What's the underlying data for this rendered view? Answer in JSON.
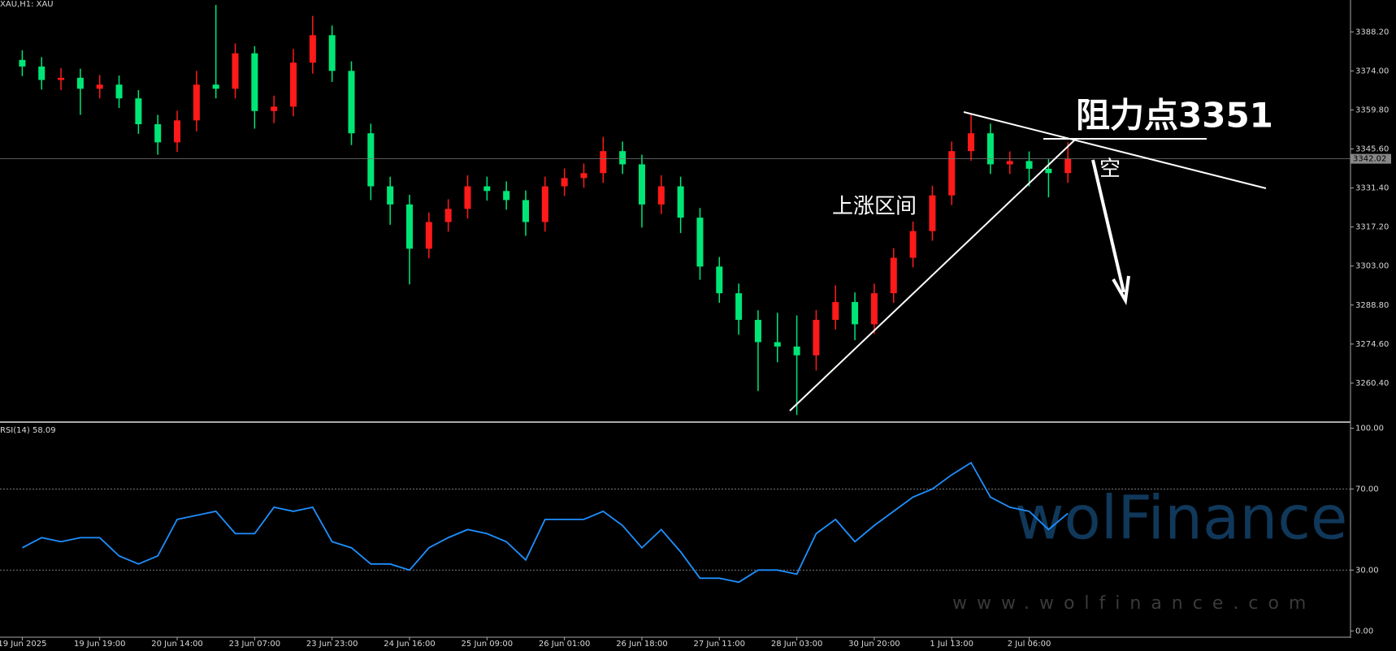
{
  "chart_data": [
    {
      "type": "candlestick",
      "title": "XAU,H1: XAU",
      "up_color": "#ff1a1a",
      "down_color": "#00e676",
      "open": [
        3378.0,
        3375.6,
        3370.7,
        3371.5,
        3367.5,
        3369.0,
        3364.0,
        3354.6,
        3348.0,
        3356.0,
        3369.0,
        3367.5,
        3380.4,
        3359.4,
        3361.0,
        3377.0,
        3387.0,
        3374.0,
        3351.3,
        3332.0,
        3325.4,
        3309.3,
        3319.0,
        3323.8,
        3332.0,
        3330.3,
        3327.0,
        3319.0,
        3332.0,
        3335.0,
        3336.8,
        3344.8,
        3340.0,
        3325.4,
        3332.0,
        3320.6,
        3302.8,
        3293.1,
        3283.4,
        3275.3,
        3273.7,
        3270.5,
        3283.4,
        3289.9,
        3281.8,
        3293.1,
        3306.0,
        3315.7,
        3328.7,
        3344.8,
        3351.3,
        3340.0,
        3341.2,
        3338.4,
        3336.8
      ],
      "high": [
        3381.5,
        3379.0,
        3375.0,
        3374.8,
        3372.5,
        3372.3,
        3367.0,
        3358.0,
        3359.5,
        3374.0,
        3398.0,
        3384.0,
        3383.0,
        3365.0,
        3382.0,
        3394.0,
        3390.5,
        3377.5,
        3354.8,
        3335.5,
        3328.9,
        3322.5,
        3327.3,
        3336.0,
        3335.5,
        3333.8,
        3330.5,
        3335.5,
        3338.5,
        3340.3,
        3350.0,
        3348.3,
        3343.5,
        3336.0,
        3335.5,
        3324.1,
        3306.3,
        3296.6,
        3286.9,
        3286.0,
        3285.0,
        3287.0,
        3296.0,
        3293.4,
        3296.6,
        3309.5,
        3319.2,
        3332.2,
        3348.3,
        3358.4,
        3354.8,
        3344.7,
        3344.7,
        3341.9,
        3348.0
      ],
      "low": [
        3372.1,
        3367.2,
        3367.0,
        3358.0,
        3364.0,
        3360.5,
        3351.1,
        3343.5,
        3344.5,
        3352.0,
        3364.0,
        3364.0,
        3353.0,
        3355.0,
        3357.5,
        3373.0,
        3370.0,
        3347.0,
        3327.0,
        3318.0,
        3296.3,
        3305.8,
        3315.5,
        3320.3,
        3326.8,
        3323.5,
        3314.0,
        3315.5,
        3328.5,
        3331.5,
        3333.3,
        3336.5,
        3317.0,
        3321.9,
        3315.0,
        3298.0,
        3289.6,
        3278.0,
        3257.5,
        3268.0,
        3248.8,
        3265.0,
        3279.9,
        3276.0,
        3278.3,
        3289.6,
        3302.5,
        3312.2,
        3325.2,
        3341.3,
        3336.5,
        3336.5,
        3332.0,
        3328.0,
        3333.3
      ],
      "close": [
        3375.6,
        3370.7,
        3371.5,
        3367.5,
        3369.0,
        3364.0,
        3354.6,
        3348.0,
        3356.0,
        3369.0,
        3367.5,
        3380.4,
        3359.4,
        3361.0,
        3377.0,
        3387.0,
        3374.0,
        3351.3,
        3332.0,
        3325.4,
        3309.3,
        3319.0,
        3323.8,
        3332.0,
        3330.3,
        3327.0,
        3319.0,
        3332.0,
        3335.0,
        3336.8,
        3344.8,
        3340.0,
        3325.4,
        3332.0,
        3320.6,
        3302.8,
        3293.1,
        3283.4,
        3275.3,
        3273.7,
        3270.5,
        3283.4,
        3289.9,
        3281.8,
        3293.1,
        3306.0,
        3315.7,
        3328.7,
        3344.8,
        3351.3,
        3340.0,
        3341.2,
        3338.4,
        3336.8,
        3342.0
      ],
      "ylim": [
        3246.5,
        3399.8
      ],
      "yticks": [
        {
          "value": 3388.2,
          "label": "3388.20"
        },
        {
          "value": 3374.0,
          "label": "3374.00"
        },
        {
          "value": 3359.8,
          "label": "3359.80"
        },
        {
          "value": 3345.6,
          "label": "3345.60"
        },
        {
          "value": 3331.4,
          "label": "3331.40"
        },
        {
          "value": 3317.2,
          "label": "3317.20"
        },
        {
          "value": 3303.0,
          "label": "3303.00"
        },
        {
          "value": 3288.8,
          "label": "3288.80"
        },
        {
          "value": 3274.6,
          "label": "3274.60"
        },
        {
          "value": 3260.4,
          "label": "3260.40"
        }
      ],
      "last_price": {
        "value": 3342.02,
        "label": "3342.02"
      }
    },
    {
      "type": "line",
      "title": "RSI(14) 58.09",
      "color": "#1e90ff",
      "categories": [
        "19 Jun 2025",
        null,
        null,
        null,
        "19 Jun 19:00",
        null,
        null,
        null,
        "20 Jun 14:00",
        null,
        null,
        null,
        "23 Jun 07:00",
        null,
        null,
        null,
        "23 Jun 23:00",
        null,
        null,
        null,
        "24 Jun 16:00",
        null,
        null,
        null,
        "25 Jun 09:00",
        null,
        null,
        null,
        "26 Jun 01:00",
        null,
        null,
        null,
        "26 Jun 18:00",
        null,
        null,
        null,
        "27 Jun 11:00",
        null,
        null,
        null,
        "28 Jun 03:00",
        null,
        null,
        null,
        "30 Jun 20:00",
        null,
        null,
        null,
        "1 Jul 13:00",
        null,
        null,
        null,
        "2 Jul 06:00",
        null,
        null
      ],
      "values": [
        41,
        46,
        44,
        46,
        46,
        37,
        33,
        37,
        55,
        57,
        59,
        48,
        48,
        61,
        59,
        61,
        44,
        41,
        33,
        33,
        30,
        41,
        46,
        50,
        48,
        44,
        35,
        55,
        55,
        55,
        59,
        52,
        41,
        50,
        39,
        26,
        26,
        24,
        30,
        30,
        28,
        48,
        55,
        44,
        52,
        59,
        66,
        70,
        77,
        83,
        66,
        61,
        59,
        50,
        58
      ],
      "ylim": [
        -3.1,
        102.6
      ],
      "yticks": [
        {
          "value": 100,
          "label": "100.00"
        },
        {
          "value": 70,
          "label": "70.00"
        },
        {
          "value": 30,
          "label": "30.00"
        },
        {
          "value": 0,
          "label": "0.00"
        }
      ],
      "levels": [
        70,
        30
      ]
    }
  ],
  "annotations": {
    "resistance": "阻力点3351",
    "range": "上涨区间",
    "short": "空"
  },
  "watermark": {
    "brand": "wolFinance",
    "url": "www.wolfinance.com"
  }
}
